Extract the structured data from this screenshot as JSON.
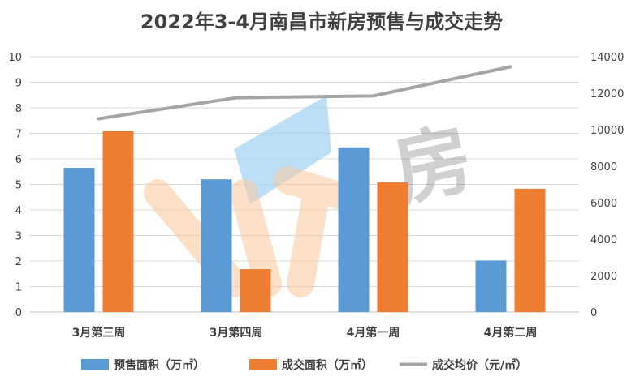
{
  "chart_data": {
    "type": "bar",
    "title": "2022年3-4月南昌市新房预售与成交走势",
    "categories": [
      "3月第三周",
      "3月第四周",
      "4月第一周",
      "4月第二周"
    ],
    "y_left": {
      "range": [
        0,
        10
      ],
      "ticks": [
        0,
        1,
        2,
        3,
        4,
        5,
        6,
        7,
        8,
        9,
        10
      ]
    },
    "y_right": {
      "range": [
        0,
        14000
      ],
      "ticks": [
        0,
        2000,
        4000,
        6000,
        8000,
        10000,
        12000,
        14000
      ]
    },
    "grid": true,
    "legend_position": "bottom",
    "series": [
      {
        "name": "预售面积（万㎡）",
        "type": "bar",
        "axis": "left",
        "color": "#5b9bd5",
        "values": [
          5.65,
          5.2,
          6.45,
          2.02
        ]
      },
      {
        "name": "成交面积（万㎡）",
        "type": "bar",
        "axis": "left",
        "color": "#ed7d31",
        "values": [
          7.08,
          1.68,
          5.08,
          4.83
        ]
      },
      {
        "name": "成交均价（元/㎡）",
        "type": "line",
        "axis": "right",
        "color": "#a5a5a5",
        "values": [
          10600,
          11750,
          11850,
          13450
        ]
      }
    ],
    "watermark": "房"
  }
}
